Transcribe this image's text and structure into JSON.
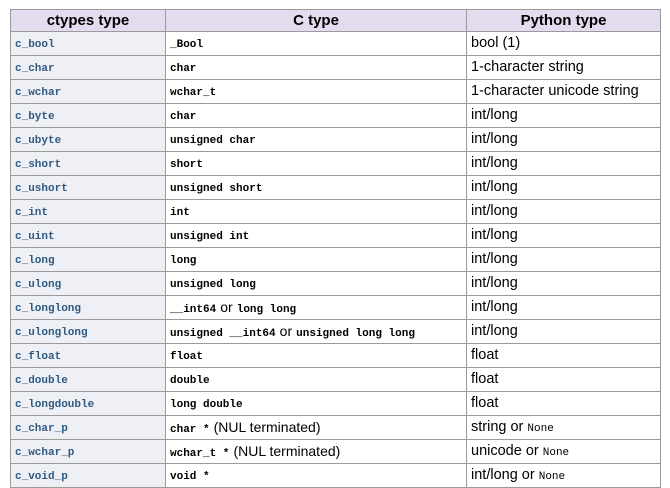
{
  "table": {
    "columns": [
      "ctypes type",
      "C type",
      "Python type"
    ],
    "rows": [
      [
        "c_bool",
        "_Bool",
        "bool (1)"
      ],
      [
        "c_char",
        "char",
        "1-character string"
      ],
      [
        "c_wchar",
        "wchar_t",
        "1-character unicode string"
      ],
      [
        "c_byte",
        "char",
        "int/long"
      ],
      [
        "c_ubyte",
        "unsigned char",
        "int/long"
      ],
      [
        "c_short",
        "short",
        "int/long"
      ],
      [
        "c_ushort",
        "unsigned short",
        "int/long"
      ],
      [
        "c_int",
        "int",
        "int/long"
      ],
      [
        "c_uint",
        "unsigned int",
        "int/long"
      ],
      [
        "c_long",
        "long",
        "int/long"
      ],
      [
        "c_ulong",
        "unsigned long",
        "int/long"
      ],
      [
        "c_longlong",
        [
          {
            "code": "__int64"
          },
          {
            "text": "or"
          },
          {
            "code": "long long"
          }
        ],
        "int/long"
      ],
      [
        "c_ulonglong",
        [
          {
            "code": "unsigned __int64"
          },
          {
            "text": "or"
          },
          {
            "code": "unsigned long long"
          }
        ],
        "int/long"
      ],
      [
        "c_float",
        "float",
        "float"
      ],
      [
        "c_double",
        "double",
        "float"
      ],
      [
        "c_longdouble",
        "long double",
        "float"
      ],
      [
        "c_char_p",
        [
          {
            "code": "char *"
          },
          {
            "text": "(NUL terminated)"
          }
        ],
        [
          {
            "text": "string or"
          },
          {
            "code": "None"
          }
        ]
      ],
      [
        "c_wchar_p",
        [
          {
            "code": "wchar_t *"
          },
          {
            "text": "(NUL terminated)"
          }
        ],
        [
          {
            "text": "unicode or"
          },
          {
            "code": "None"
          }
        ]
      ],
      [
        "c_void_p",
        "void *",
        [
          {
            "text": "int/long or"
          },
          {
            "code": "None"
          }
        ]
      ]
    ]
  }
}
